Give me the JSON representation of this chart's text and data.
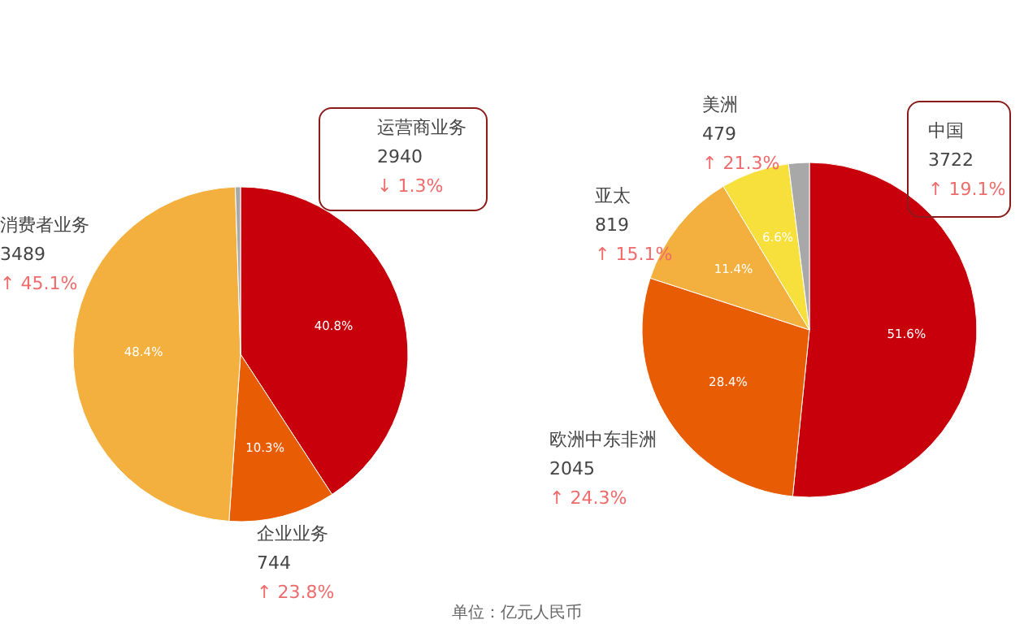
{
  "chart_data": [
    {
      "type": "pie",
      "categories": [
        "运营商业务",
        "企业业务",
        "消费者业务",
        null
      ],
      "values": [
        40.8,
        10.3,
        48.4,
        0.5
      ],
      "colors": [
        "#c8000b",
        "#e85d04",
        "#f4b03e",
        "#a8a8a8"
      ],
      "value_labels": [
        "40.8%",
        "10.3%",
        "48.4%",
        null
      ],
      "annotations": [
        {
          "text": "2940",
          "x": "运营商业务"
        },
        {
          "text": "↓ 1.3%",
          "x": "运营商业务"
        },
        {
          "text": "744",
          "x": "企业业务"
        },
        {
          "text": "↑ 23.8%",
          "x": "企业业务"
        },
        {
          "text": "3489",
          "x": "消费者业务"
        },
        {
          "text": "↑ 45.1%",
          "x": "消费者业务"
        }
      ]
    },
    {
      "type": "pie",
      "categories": [
        "中国",
        "欧洲中东非洲",
        "亚太",
        "美洲",
        null
      ],
      "values": [
        51.6,
        28.4,
        11.4,
        6.6,
        2.0
      ],
      "colors": [
        "#c8000b",
        "#e85d04",
        "#f4b03e",
        "#f7df3c",
        "#a8a8a8"
      ],
      "value_labels": [
        "51.6%",
        "28.4%",
        "11.4%",
        "6.6%",
        null
      ],
      "annotations": [
        {
          "text": "3722",
          "x": "中国"
        },
        {
          "text": "↑ 19.1%",
          "x": "中国"
        },
        {
          "text": "2045",
          "x": "欧洲中东非洲"
        },
        {
          "text": "↑ 24.3%",
          "x": "欧洲中东非洲"
        },
        {
          "text": "819",
          "x": "亚太"
        },
        {
          "text": "↑ 15.1%",
          "x": "亚太"
        },
        {
          "text": "479",
          "x": "美洲"
        },
        {
          "text": "↑ 21.3%",
          "x": "美洲"
        },
        "单位：亿元人民币"
      ]
    }
  ]
}
